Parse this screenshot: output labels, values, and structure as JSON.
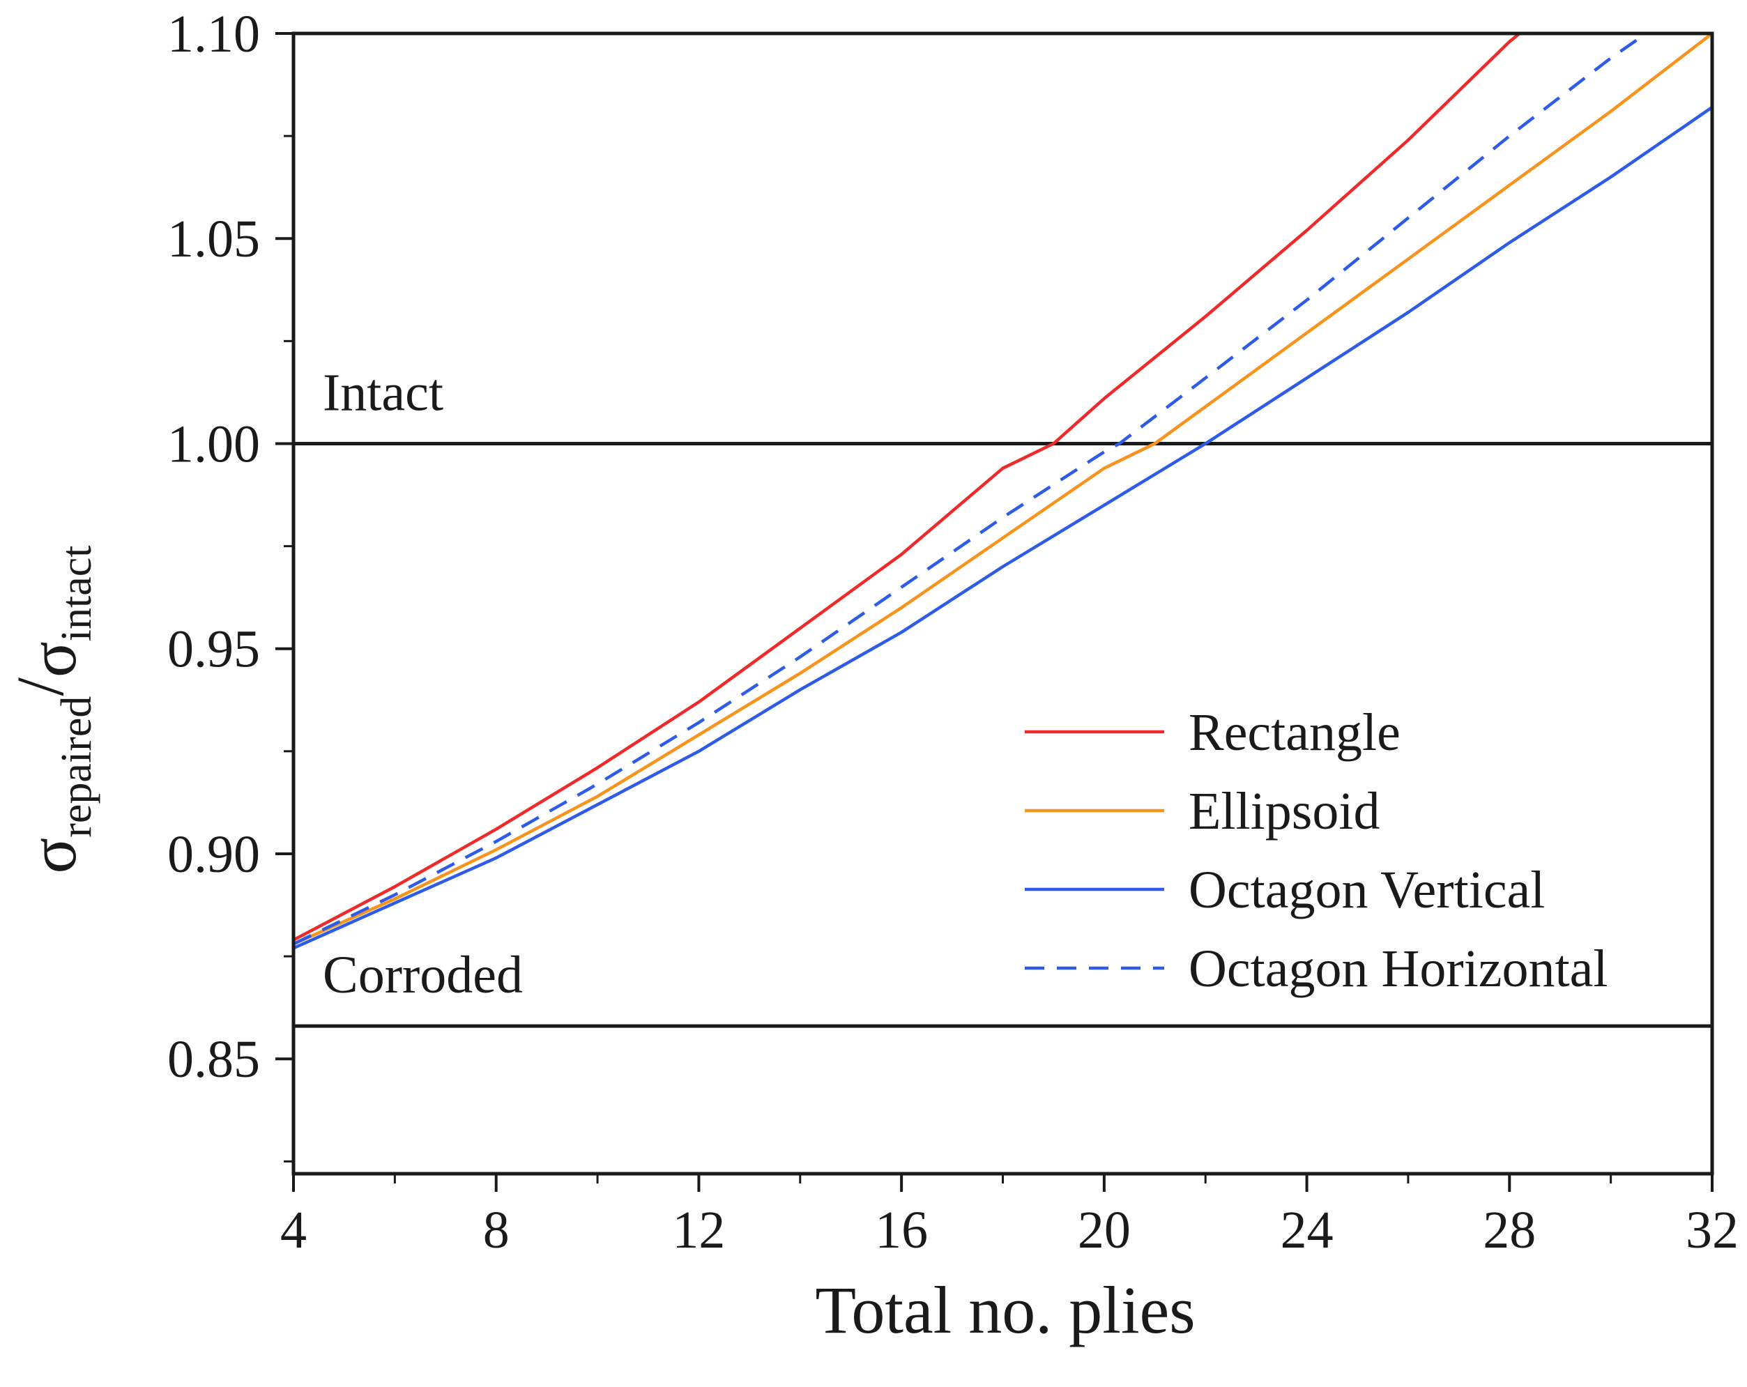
{
  "chart_data": {
    "type": "line",
    "title": "",
    "xlabel": "Total no. plies",
    "ylabel": {
      "symbol": "σ",
      "numerator_sub": "repaired",
      "slash": "/",
      "denominator_sub": "intact"
    },
    "xlim": [
      4,
      32
    ],
    "ylim": [
      0.822,
      1.1
    ],
    "x_ticks": [
      4,
      8,
      12,
      16,
      20,
      24,
      28,
      32
    ],
    "x_tick_labels": [
      "4",
      "8",
      "12",
      "16",
      "20",
      "24",
      "28",
      "32"
    ],
    "x_minor_step": 2,
    "y_ticks": [
      0.85,
      0.9,
      0.95,
      1.0,
      1.05,
      1.1
    ],
    "y_tick_labels": [
      "0.85",
      "0.90",
      "0.95",
      "1.00",
      "1.05",
      "1.10"
    ],
    "y_minor_step": 0.025,
    "grid": false,
    "legend_position": "center-right",
    "reference_lines": [
      {
        "name": "intact",
        "label": "Intact",
        "y": 1.0
      },
      {
        "name": "corroded",
        "label": "Corroded",
        "y": 0.858
      }
    ],
    "series": [
      {
        "name": "Rectangle",
        "color": "#ee2a2a",
        "dash": "solid",
        "x": [
          4,
          6,
          8,
          10,
          12,
          14,
          16,
          18,
          19,
          20,
          22,
          24,
          26,
          28,
          28.2
        ],
        "y": [
          0.879,
          0.892,
          0.906,
          0.921,
          0.937,
          0.955,
          0.973,
          0.994,
          1.0,
          1.011,
          1.031,
          1.052,
          1.074,
          1.098,
          1.1
        ]
      },
      {
        "name": "Ellipsoid",
        "color": "#f7941d",
        "dash": "solid",
        "x": [
          4,
          6,
          8,
          10,
          12,
          14,
          16,
          18,
          20,
          21,
          22,
          24,
          26,
          28,
          30,
          32
        ],
        "y": [
          0.878,
          0.889,
          0.901,
          0.914,
          0.929,
          0.944,
          0.96,
          0.977,
          0.994,
          1.0,
          1.009,
          1.027,
          1.045,
          1.063,
          1.081,
          1.1
        ]
      },
      {
        "name": "Octagon Vertical",
        "color": "#2e5ce6",
        "dash": "solid",
        "x": [
          4,
          6,
          8,
          10,
          12,
          14,
          16,
          18,
          20,
          22,
          24,
          26,
          28,
          30,
          32
        ],
        "y": [
          0.877,
          0.888,
          0.899,
          0.912,
          0.925,
          0.94,
          0.954,
          0.97,
          0.985,
          1.0,
          1.016,
          1.032,
          1.049,
          1.065,
          1.082
        ]
      },
      {
        "name": "Octagon Horizontal",
        "color": "#2e5ce6",
        "dash": "dashed",
        "x": [
          4,
          6,
          8,
          10,
          12,
          14,
          16,
          18,
          20,
          20.3,
          22,
          24,
          26,
          28,
          30,
          30.7
        ],
        "y": [
          0.878,
          0.89,
          0.903,
          0.917,
          0.932,
          0.948,
          0.965,
          0.982,
          0.998,
          1.0,
          1.016,
          1.035,
          1.055,
          1.075,
          1.094,
          1.1
        ]
      }
    ]
  }
}
